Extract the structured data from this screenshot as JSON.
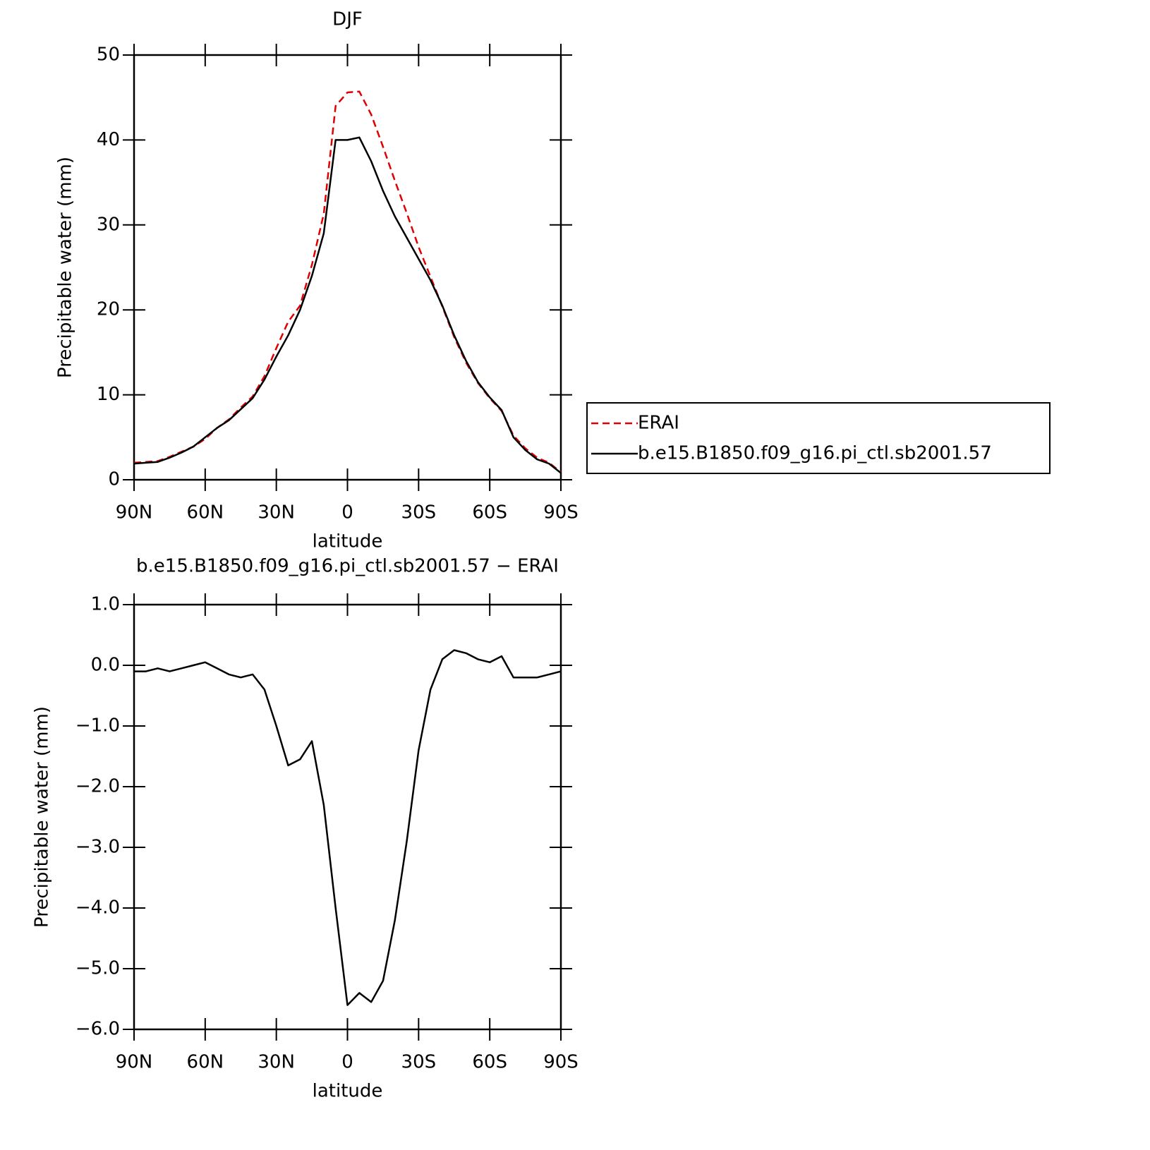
{
  "chart_data": [
    {
      "type": "line",
      "title": "DJF",
      "xlabel": "latitude",
      "ylabel": "Precipitable water (mm)",
      "x": [
        90,
        85,
        80,
        75,
        70,
        65,
        60,
        55,
        50,
        45,
        40,
        35,
        30,
        25,
        20,
        15,
        10,
        5,
        0,
        -5,
        -10,
        -15,
        -20,
        -25,
        -30,
        -35,
        -40,
        -45,
        -50,
        -55,
        -60,
        -65,
        -70,
        -75,
        -80,
        -85,
        -90
      ],
      "xlim": [
        90,
        -90
      ],
      "xticks": [
        {
          "value": 90,
          "label": "90N"
        },
        {
          "value": 60,
          "label": "60N"
        },
        {
          "value": 30,
          "label": "30N"
        },
        0,
        {
          "value": -30,
          "label": "30S"
        },
        {
          "value": -60,
          "label": "60S"
        },
        {
          "value": -90,
          "label": "90S"
        }
      ],
      "ylim": [
        0,
        50
      ],
      "yticks": [
        0,
        10,
        20,
        30,
        40,
        50
      ],
      "legend": "outside-right",
      "series": [
        {
          "name": "ERAI",
          "color": "#e00000",
          "dash": true,
          "values": [
            2.0,
            2.1,
            2.2,
            2.7,
            3.3,
            3.9,
            4.8,
            6.1,
            7.1,
            8.5,
            9.8,
            12.2,
            15.5,
            18.6,
            20.5,
            25.3,
            31.3,
            44.0,
            45.6,
            45.7,
            43.0,
            39.2,
            35.2,
            31.4,
            27.4,
            23.9,
            20.4,
            16.8,
            13.8,
            11.4,
            9.6,
            8.1,
            5.2,
            3.7,
            2.6,
            2.0,
            0.9
          ]
        },
        {
          "name": "b.e15.B1850.f09_g16.pi_ctl.sb2001.57",
          "color": "#000000",
          "dash": false,
          "values": [
            1.9,
            2.0,
            2.1,
            2.6,
            3.2,
            3.9,
            5.0,
            6.1,
            7.0,
            8.3,
            9.6,
            11.8,
            14.5,
            17.0,
            20.0,
            24.0,
            29.0,
            40.0,
            40.0,
            40.3,
            37.5,
            34.0,
            31.0,
            28.5,
            26.0,
            23.5,
            20.5,
            17.0,
            14.0,
            11.5,
            9.7,
            8.2,
            5.0,
            3.5,
            2.4,
            1.9,
            0.8
          ]
        }
      ]
    },
    {
      "type": "line",
      "title": "b.e15.B1850.f09_g16.pi_ctl.sb2001.57 − ERAI",
      "xlabel": "latitude",
      "ylabel": "Precipitable water (mm)",
      "x": [
        90,
        85,
        80,
        75,
        70,
        65,
        60,
        55,
        50,
        45,
        40,
        35,
        30,
        25,
        20,
        15,
        10,
        5,
        0,
        -5,
        -10,
        -15,
        -20,
        -25,
        -30,
        -35,
        -40,
        -45,
        -50,
        -55,
        -60,
        -65,
        -70,
        -75,
        -80,
        -85,
        -90
      ],
      "xlim": [
        90,
        -90
      ],
      "xticks": [
        {
          "value": 90,
          "label": "90N"
        },
        {
          "value": 60,
          "label": "60N"
        },
        {
          "value": 30,
          "label": "30N"
        },
        0,
        {
          "value": -30,
          "label": "30S"
        },
        {
          "value": -60,
          "label": "60S"
        },
        {
          "value": -90,
          "label": "90S"
        }
      ],
      "ylim": [
        -6,
        1
      ],
      "yticks": [
        {
          "value": 1,
          "label": "1.0"
        },
        {
          "value": 0,
          "label": "0.0"
        },
        {
          "value": -1,
          "label": "−1.0"
        },
        {
          "value": -2,
          "label": "−2.0"
        },
        {
          "value": -3,
          "label": "−3.0"
        },
        {
          "value": -4,
          "label": "−4.0"
        },
        {
          "value": -5,
          "label": "−5.0"
        },
        {
          "value": -6,
          "label": "−6.0"
        }
      ],
      "series": [
        {
          "color": "#000000",
          "values": [
            -0.1,
            -0.1,
            -0.05,
            -0.1,
            -0.05,
            0.0,
            0.05,
            -0.05,
            -0.15,
            -0.2,
            -0.15,
            -0.4,
            -1.0,
            -1.65,
            -1.55,
            -1.25,
            -2.3,
            -4.0,
            -5.6,
            -5.4,
            -5.55,
            -5.2,
            -4.2,
            -2.9,
            -1.4,
            -0.4,
            0.1,
            0.25,
            0.2,
            0.1,
            0.05,
            0.15,
            -0.2,
            -0.2,
            -0.2,
            -0.15,
            -0.1
          ]
        }
      ]
    }
  ]
}
